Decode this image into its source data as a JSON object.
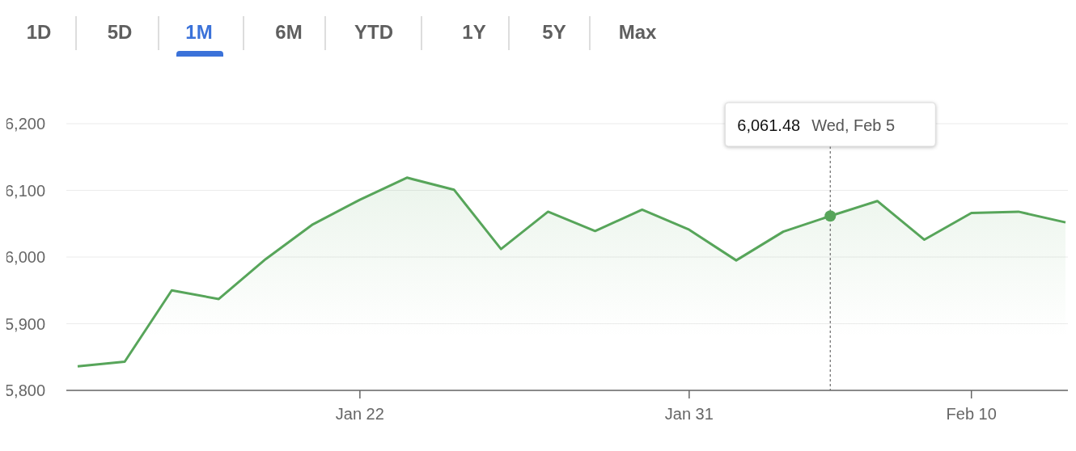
{
  "chart_data": {
    "type": "area",
    "categories": [
      null,
      null,
      null,
      null,
      null,
      null,
      "Jan 22",
      null,
      null,
      null,
      null,
      null,
      null,
      "Jan 31",
      null,
      null,
      null,
      null,
      null,
      "Feb 10",
      null,
      null
    ],
    "series": [
      {
        "color": "#57a55a",
        "values": [
          5836,
          5843,
          5950,
          5937,
          5997,
          6049,
          6086,
          6119,
          6101,
          6012,
          6068,
          6039,
          6071,
          6041,
          5995,
          6038,
          6061.48,
          6084,
          6026,
          6066,
          6068,
          6052
        ]
      }
    ],
    "ylim": [
      5800,
      6200
    ],
    "yticks": [
      {
        "value": 5800,
        "label": "5,800"
      },
      {
        "value": 5900,
        "label": "5,900"
      },
      {
        "value": 6000,
        "label": "6,000"
      },
      {
        "value": 6100,
        "label": "6,100"
      },
      {
        "value": 6200,
        "label": "6,200"
      }
    ],
    "grid": "y",
    "legend": false,
    "marker": "none",
    "line_style": "solid",
    "annotations": [
      "1D",
      "5D",
      "1M",
      "6M",
      "YTD",
      "1Y",
      "5Y",
      "Max",
      "6,061.48",
      "Wed, Feb 5"
    ]
  }
}
